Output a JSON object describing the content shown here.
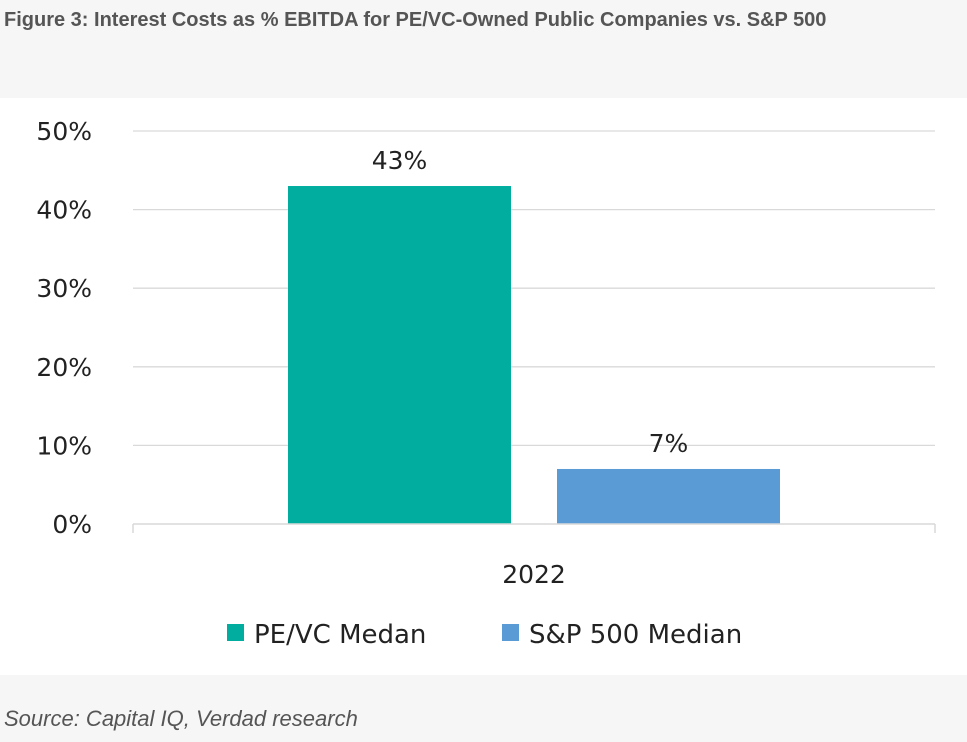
{
  "figure": {
    "title": "Figure 3: Interest Costs as % EBITDA for PE/VC-Owned Public Companies vs. S&P 500",
    "source": "Source: Capital IQ, Verdad research"
  },
  "chart_data": {
    "type": "bar",
    "categories": [
      "2022"
    ],
    "series": [
      {
        "name": "PE/VC Medan",
        "values": [
          43
        ],
        "color": "#00ad9f",
        "label": "43%"
      },
      {
        "name": "S&P 500 Median",
        "values": [
          7
        ],
        "color": "#5b9bd5",
        "label": "7%"
      }
    ],
    "ylim": [
      0,
      50
    ],
    "yticks": [
      0,
      10,
      20,
      30,
      40,
      50
    ],
    "ytick_labels": [
      "0%",
      "10%",
      "20%",
      "30%",
      "40%",
      "50%"
    ],
    "grid": true,
    "legend": "bottom",
    "title": "",
    "xlabel": "",
    "ylabel": ""
  }
}
